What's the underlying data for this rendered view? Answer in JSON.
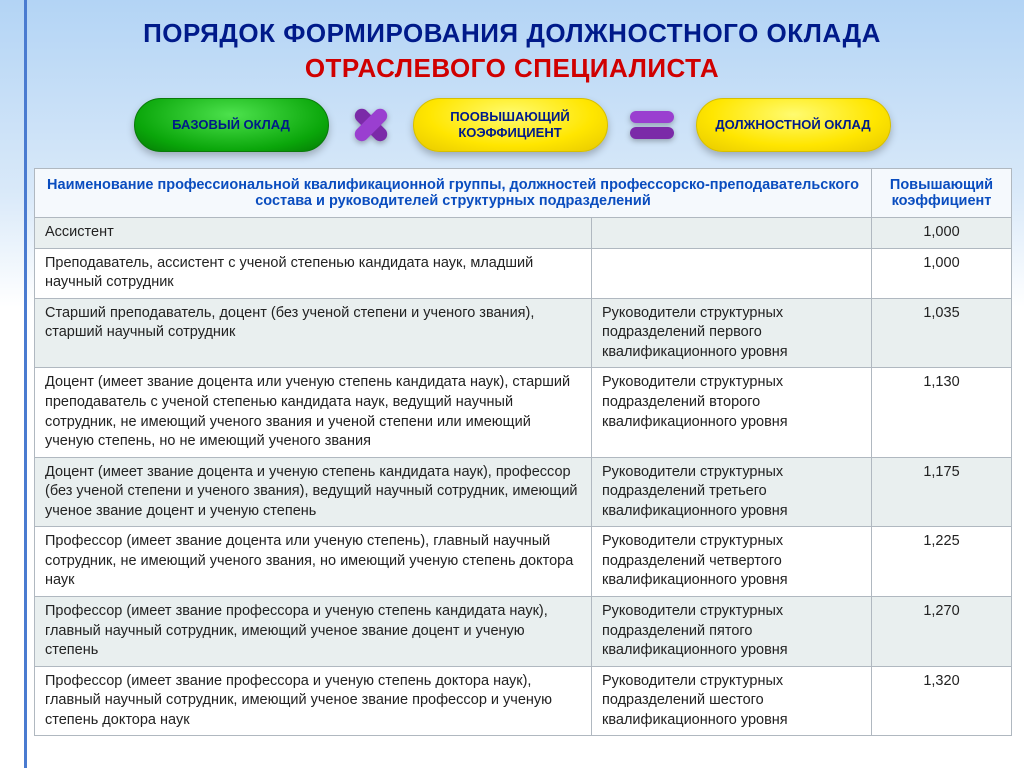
{
  "title": {
    "line1": "ПОРЯДОК ФОРМИРОВАНИЯ ДОЛЖНОСТНОГО ОКЛАДА",
    "line2": "ОТРАСЛЕВОГО СПЕЦИАЛИСТА"
  },
  "formula": {
    "base_label": "БАЗОВЫЙ ОКЛАД",
    "coef_label": "ПООВЫШАЮЩИЙ КОЭФФИЦИЕНТ",
    "result_label": "ДОЛЖНОСТНОЙ ОКЛАД"
  },
  "colors": {
    "title_blue": "#001a8a",
    "title_red": "#d00000",
    "operator_purple": "#8a2fbf",
    "pill_green": "#0aa60a",
    "pill_yellow": "#ffe600",
    "header_text": "#0a4dbf",
    "row_odd_bg": "#e9efef",
    "row_even_bg": "#ffffff",
    "border": "#b0b8c0"
  },
  "table": {
    "header": {
      "col1": "Наименование профессиональной квалификационной группы, должностей профессорско-преподавательского состава и руководителей структурных подразделений",
      "col2": "Повышающий коэффициент"
    },
    "rows": [
      {
        "c1": "Ассистент",
        "c2": "",
        "coef": "1,000"
      },
      {
        "c1": "Преподаватель, ассистент с ученой степенью кандидата наук, младший научный сотрудник",
        "c2": "",
        "coef": "1,000"
      },
      {
        "c1": "Старший преподаватель, доцент (без ученой степени и ученого звания), старший научный сотрудник",
        "c2": "Руководители структурных подразделений первого квалификационного уровня",
        "coef": "1,035"
      },
      {
        "c1": "Доцент (имеет звание доцента  или ученую степень кандидата наук), старший преподаватель с ученой степенью кандидата наук, ведущий научный сотрудник, не имеющий ученого звания и ученой степени или имеющий ученую степень, но не имеющий ученого звания",
        "c2": "Руководители структурных подразделений второго квалификационного уровня",
        "coef": "1,130"
      },
      {
        "c1": "Доцент (имеет звание доцента и ученую степень кандидата наук), профессор (без ученой степени и ученого звания), ведущий научный сотрудник, имеющий ученое звание доцент и ученую степень",
        "c2": "Руководители структурных подразделений третьего квалификационного уровня",
        "coef": "1,175"
      },
      {
        "c1": "Профессор (имеет звание доцента или  ученую степень), главный научный сотрудник, не имеющий ученого звания, но имеющий ученую степень доктора наук",
        "c2": "Руководители структурных подразделений четвертого квалификационного уровня",
        "coef": "1,225"
      },
      {
        "c1": "Профессор (имеет звание профессора и ученую степень кандидата наук), главный научный сотрудник, имеющий ученое звание доцент и ученую степень",
        "c2": "Руководители структурных подразделений пятого квалификационного уровня",
        "coef": "1,270"
      },
      {
        "c1": "Профессор (имеет звание профессора и ученую степень доктора наук), главный научный сотрудник, имеющий ученое звание профессор и ученую степень доктора наук",
        "c2": "Руководители структурных подразделений шестого квалификационного уровня",
        "coef": "1,320"
      }
    ]
  }
}
